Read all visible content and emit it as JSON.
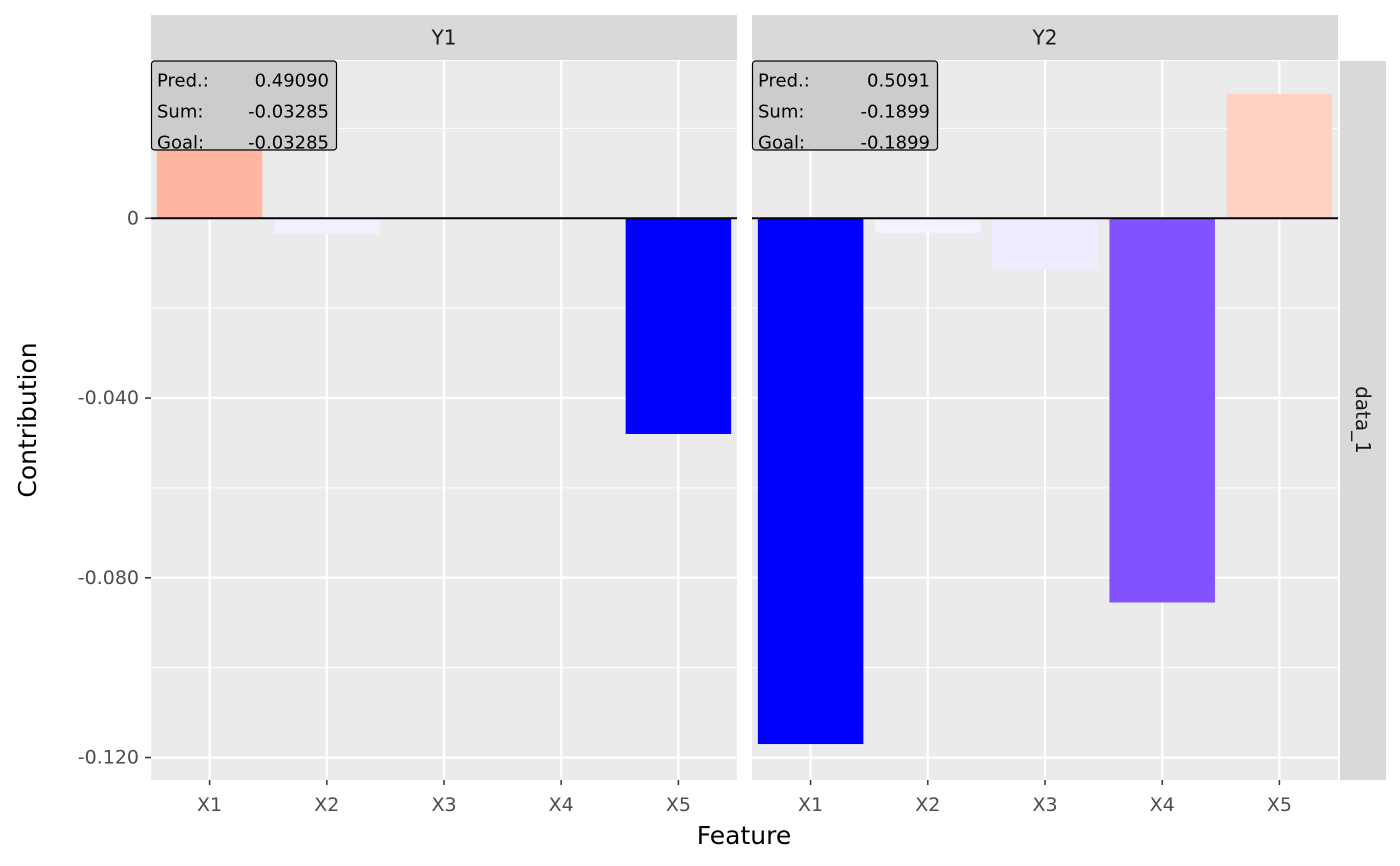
{
  "chart_data": {
    "type": "bar",
    "facet_row_label": "data_1",
    "xlabel": "Feature",
    "ylabel": "Contribution",
    "ylim": [
      -0.125,
      0.035
    ],
    "y_ticks": [
      0,
      -0.04,
      -0.08,
      -0.12
    ],
    "y_tick_labels": [
      "0",
      "-0.040",
      "-0.080",
      "-0.120"
    ],
    "categories": [
      "X1",
      "X2",
      "X3",
      "X4",
      "X5"
    ],
    "grid": true,
    "panels": [
      {
        "title": "Y1",
        "values": [
          0.018,
          -0.0035,
          0.0,
          0.0,
          -0.048
        ],
        "colors": [
          "#ffb6a1",
          "#f3efff",
          "#ffffff",
          "#ffffff",
          "#0000ff"
        ],
        "annotation": [
          {
            "label": "Pred.:",
            "value": "0.49090"
          },
          {
            "label": "Sum:",
            "value": "-0.03285"
          },
          {
            "label": "Goal:",
            "value": "-0.03285"
          }
        ]
      },
      {
        "title": "Y2",
        "values": [
          -0.117,
          -0.0032,
          -0.0115,
          -0.0855,
          0.0277
        ],
        "colors": [
          "#0000ff",
          "#f5f2ff",
          "#f1ebff",
          "#8352ff",
          "#ffd2c2"
        ],
        "annotation": [
          {
            "label": "Pred.:",
            "value": "0.5091"
          },
          {
            "label": "Sum:",
            "value": "-0.1899"
          },
          {
            "label": "Goal:",
            "value": "-0.1899"
          }
        ]
      }
    ]
  }
}
